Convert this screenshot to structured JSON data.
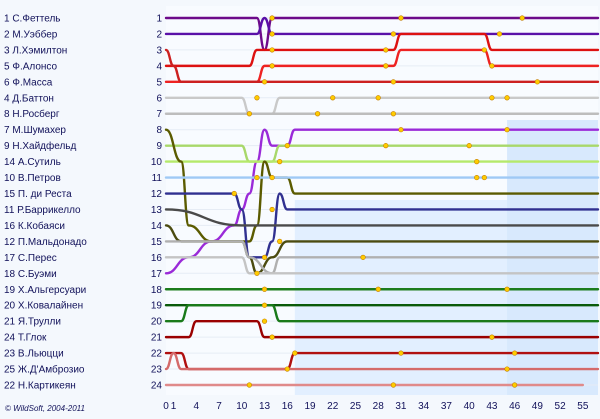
{
  "chart_data": {
    "type": "line",
    "credit": "© WildSoft, 2004-2011",
    "x_ticks": [
      0,
      1,
      4,
      7,
      10,
      13,
      16,
      19,
      22,
      25,
      28,
      31,
      34,
      37,
      40,
      43,
      46,
      49,
      52,
      55
    ],
    "xlim": [
      0,
      57
    ],
    "ylim": [
      1,
      24
    ],
    "pit_marker_color": "#ffcc00",
    "drivers": [
      {
        "grid": 1,
        "label": "1  С.Феттель",
        "color": "#6d0a8a",
        "pos": [
          [
            0,
            1
          ],
          [
            12,
            1
          ],
          [
            13,
            3
          ],
          [
            14,
            1
          ],
          [
            57,
            1
          ]
        ],
        "pits": [
          [
            14,
            1
          ],
          [
            31,
            1
          ],
          [
            47,
            1
          ]
        ]
      },
      {
        "grid": 2,
        "label": "2  М.Уэббер",
        "color": "#5a10a8",
        "pos": [
          [
            0,
            2
          ],
          [
            12,
            2
          ],
          [
            13,
            1
          ],
          [
            14,
            2
          ],
          [
            57,
            2
          ]
        ],
        "pits": [
          [
            14,
            2
          ],
          [
            30,
            2
          ],
          [
            44,
            2
          ]
        ]
      },
      {
        "grid": 3,
        "label": "3  Л.Хэмилтон",
        "color": "#dd1111",
        "pos": [
          [
            0,
            4
          ],
          [
            11,
            4
          ],
          [
            12,
            3
          ],
          [
            30,
            3
          ],
          [
            31,
            2
          ],
          [
            42,
            2
          ],
          [
            43,
            3
          ],
          [
            57,
            3
          ]
        ],
        "pits": [
          [
            14,
            3
          ],
          [
            29,
            3
          ],
          [
            42,
            3
          ]
        ]
      },
      {
        "grid": 4,
        "label": "5  Ф.Алонсо",
        "color": "#ee2222",
        "pos": [
          [
            0,
            5
          ],
          [
            12,
            5
          ],
          [
            13,
            4
          ],
          [
            30,
            4
          ],
          [
            31,
            3
          ],
          [
            42,
            3
          ],
          [
            43,
            4
          ],
          [
            57,
            4
          ]
        ],
        "pits": [
          [
            14,
            4
          ],
          [
            29,
            4
          ],
          [
            43,
            4
          ]
        ]
      },
      {
        "grid": 5,
        "label": "6  Ф.Масса",
        "color": "#cc2020",
        "pos": [
          [
            0,
            3
          ],
          [
            1,
            4
          ],
          [
            2,
            5
          ],
          [
            57,
            5
          ]
        ],
        "pits": [
          [
            13,
            5
          ],
          [
            30,
            5
          ],
          [
            49,
            5
          ]
        ]
      },
      {
        "grid": 6,
        "label": "4  Д.Баттон",
        "color": "#c9c9c9",
        "pos": [
          [
            0,
            6
          ],
          [
            10,
            6
          ],
          [
            11,
            7
          ],
          [
            14,
            7
          ],
          [
            15,
            6
          ],
          [
            57,
            6
          ]
        ],
        "pits": [
          [
            12,
            6
          ],
          [
            22,
            6
          ],
          [
            28,
            6
          ],
          [
            43,
            6
          ],
          [
            45,
            6
          ]
        ]
      },
      {
        "grid": 7,
        "label": "8  Н.Росберг",
        "color": "#bdbdbd",
        "pos": [
          [
            0,
            7
          ],
          [
            57,
            7
          ]
        ],
        "pits": [
          [
            11,
            7
          ],
          [
            20,
            7
          ],
          [
            30,
            7
          ]
        ]
      },
      {
        "grid": 8,
        "label": "7  М.Шумахер",
        "color": "#9a2ad8",
        "pos": [
          [
            0,
            17
          ],
          [
            3,
            16
          ],
          [
            6,
            15
          ],
          [
            9,
            14
          ],
          [
            10,
            13
          ],
          [
            11,
            12
          ],
          [
            12,
            10
          ],
          [
            13,
            8
          ],
          [
            14,
            9
          ],
          [
            16,
            9
          ],
          [
            17,
            8
          ],
          [
            57,
            8
          ]
        ],
        "pits": [
          [
            16,
            9
          ],
          [
            31,
            8
          ],
          [
            45,
            8
          ]
        ]
      },
      {
        "grid": 9,
        "label": "9  Н.Хайдфельд",
        "color": "#a8d86a",
        "pos": [
          [
            0,
            9
          ],
          [
            10,
            9
          ],
          [
            11,
            10
          ],
          [
            14,
            10
          ],
          [
            15,
            9
          ],
          [
            57,
            9
          ]
        ],
        "pits": [
          [
            15,
            10
          ],
          [
            29,
            9
          ],
          [
            40,
            9
          ]
        ]
      },
      {
        "grid": 10,
        "label": "14 А.Сутиль",
        "color": "#b5e96b",
        "pos": [
          [
            0,
            10
          ],
          [
            57,
            10
          ]
        ],
        "pits": [
          [
            12,
            11
          ],
          [
            41,
            10
          ]
        ]
      },
      {
        "grid": 11,
        "label": "10 В.Петров",
        "color": "#5b5b00",
        "pos": [
          [
            0,
            8
          ],
          [
            2,
            10
          ],
          [
            3,
            14
          ],
          [
            6,
            15
          ],
          [
            11,
            15
          ],
          [
            12,
            14
          ],
          [
            13,
            10
          ],
          [
            14,
            11
          ],
          [
            16,
            11
          ],
          [
            17,
            12
          ],
          [
            57,
            12
          ]
        ],
        "pits": [
          [
            9,
            12
          ],
          [
            41,
            11
          ]
        ]
      },
      {
        "grid": 12,
        "label": "15 П. ди Реста",
        "color": "#9fc9f5",
        "pos": [
          [
            0,
            11
          ],
          [
            57,
            11
          ]
        ],
        "pits": [
          [
            14,
            11
          ],
          [
            42,
            11
          ]
        ]
      },
      {
        "grid": 13,
        "label": "11 Р.Баррикелло",
        "color": "#303090",
        "pos": [
          [
            0,
            12
          ],
          [
            9,
            12
          ],
          [
            10,
            13
          ],
          [
            11,
            16
          ],
          [
            13,
            16
          ],
          [
            14,
            15
          ],
          [
            15,
            12
          ],
          [
            16,
            13
          ],
          [
            57,
            13
          ]
        ],
        "pits": [
          [
            14,
            13
          ]
        ]
      },
      {
        "grid": 14,
        "label": "16 К.Кобаяси",
        "color": "#4a4a4a",
        "pos": [
          [
            0,
            13
          ],
          [
            10,
            14
          ],
          [
            11,
            14
          ],
          [
            57,
            14
          ]
        ],
        "pits": []
      },
      {
        "grid": 15,
        "label": "12 П.Мальдонадо",
        "color": "#4b4b10",
        "pos": [
          [
            0,
            14
          ],
          [
            2,
            15
          ],
          [
            10,
            15
          ],
          [
            11,
            16
          ],
          [
            12,
            17
          ],
          [
            14,
            16
          ],
          [
            16,
            15
          ],
          [
            57,
            15
          ]
        ],
        "pits": [
          [
            15,
            15
          ]
        ]
      },
      {
        "grid": 16,
        "label": "17 С.Перес",
        "color": "#b0b0b0",
        "pos": [
          [
            0,
            15
          ],
          [
            10,
            15
          ],
          [
            11,
            16
          ],
          [
            14,
            17
          ],
          [
            15,
            16
          ],
          [
            57,
            16
          ]
        ],
        "pits": [
          [
            13,
            16
          ],
          [
            26,
            16
          ]
        ]
      },
      {
        "grid": 17,
        "label": "18 С.Буэми",
        "color": "#c4c4c4",
        "pos": [
          [
            0,
            16
          ],
          [
            10,
            16
          ],
          [
            11,
            17
          ],
          [
            57,
            17
          ]
        ],
        "pits": [
          [
            12,
            17
          ]
        ]
      },
      {
        "grid": 18,
        "label": "19 Х.Альгерсуари",
        "color": "#1d7c1d",
        "pos": [
          [
            0,
            18
          ],
          [
            57,
            18
          ]
        ],
        "pits": [
          [
            13,
            18
          ],
          [
            28,
            18
          ],
          [
            45,
            18
          ]
        ]
      },
      {
        "grid": 19,
        "label": "20 Х.Ковалайнен",
        "color": "#0a5a0a",
        "pos": [
          [
            0,
            19
          ],
          [
            57,
            19
          ]
        ],
        "pits": [
          [
            13,
            19
          ]
        ]
      },
      {
        "grid": 20,
        "label": "21 Я.Трулли",
        "color": "#1a7a1a",
        "pos": [
          [
            0,
            20
          ],
          [
            2,
            20
          ],
          [
            3,
            19
          ],
          [
            14,
            19
          ],
          [
            15,
            20
          ],
          [
            57,
            20
          ]
        ],
        "pits": [
          [
            13,
            20
          ]
        ]
      },
      {
        "grid": 21,
        "label": "24 Т.Глок",
        "color": "#9a0000",
        "pos": [
          [
            0,
            21
          ],
          [
            3,
            21
          ],
          [
            4,
            20
          ],
          [
            12,
            20
          ],
          [
            13,
            21
          ],
          [
            57,
            21
          ]
        ],
        "pits": [
          [
            14,
            21
          ],
          [
            43,
            21
          ]
        ]
      },
      {
        "grid": 22,
        "label": "23 В.Льюцци",
        "color": "#b01010",
        "pos": [
          [
            0,
            22
          ],
          [
            2,
            22
          ],
          [
            3,
            23
          ],
          [
            16,
            23
          ],
          [
            17,
            22
          ],
          [
            57,
            22
          ]
        ],
        "pits": [
          [
            17,
            22
          ],
          [
            31,
            22
          ],
          [
            46,
            22
          ]
        ]
      },
      {
        "grid": 23,
        "label": "25 Ж.Д'Амброзио",
        "color": "#d46a6a",
        "pos": [
          [
            0,
            23
          ],
          [
            1,
            22
          ],
          [
            2,
            23
          ],
          [
            57,
            23
          ]
        ],
        "pits": [
          [
            16,
            23
          ],
          [
            45,
            23
          ]
        ]
      },
      {
        "grid": 24,
        "label": "22 Н.Картикеян",
        "color": "#e08a8a",
        "pos": [
          [
            0,
            24
          ],
          [
            55,
            24
          ]
        ],
        "pits": [
          [
            11,
            24
          ],
          [
            30,
            24
          ],
          [
            46,
            24
          ]
        ]
      }
    ]
  }
}
